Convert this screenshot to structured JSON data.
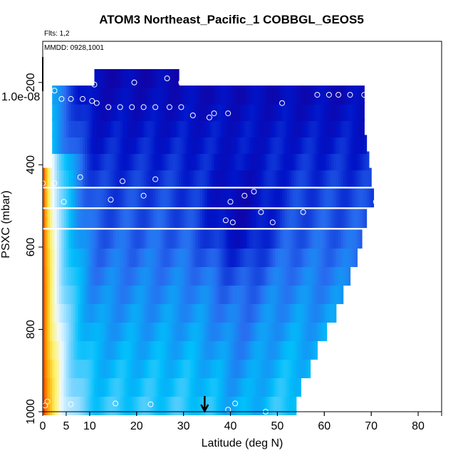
{
  "chart_data": {
    "type": "heatmap",
    "title": "ATOM3 Northeast_Pacific_1 COBBGL_GEOS5",
    "flights_label": "Flts: 1,2",
    "date_label": "MMDD: 0928,1001",
    "xlabel": "Latitude (deg N)",
    "ylabel": "PSXC (mbar)",
    "xlim": [
      0,
      85
    ],
    "ylim": [
      1000,
      100
    ],
    "x_ticks": [
      0,
      5,
      10,
      20,
      30,
      40,
      50,
      60,
      70,
      80
    ],
    "y_ticks": [
      200,
      400,
      600,
      800,
      1000
    ],
    "special_tick_label": "1.0e-08",
    "arrow_latitude": 34.5,
    "rows": [
      {
        "p": 985,
        "xmax": 54
      },
      {
        "p": 940,
        "xmax": 55
      },
      {
        "p": 895,
        "xmax": 57
      },
      {
        "p": 850,
        "xmax": 58.5
      },
      {
        "p": 805,
        "xmax": 60.5
      },
      {
        "p": 760,
        "xmax": 62.5
      },
      {
        "p": 715,
        "xmax": 64
      },
      {
        "p": 670,
        "xmax": 65.5
      },
      {
        "p": 625,
        "xmax": 67
      },
      {
        "p": 580,
        "xmax": 68
      },
      {
        "p": 530,
        "xmax": 69
      },
      {
        "p": 480,
        "xmax": 70.5
      },
      {
        "p": 430,
        "xmax": 70
      },
      {
        "p": 390,
        "xmax": 69.5
      },
      {
        "p": 350,
        "xmax": 69
      },
      {
        "p": 310,
        "xmax": 68.5
      },
      {
        "p": 270,
        "xmax": 68.5
      },
      {
        "p": 230,
        "xmax": 68.5
      },
      {
        "p": 190,
        "xmin": 11,
        "xmax": 29
      }
    ],
    "flight_points": [
      {
        "x": 0.5,
        "y": 985
      },
      {
        "x": 1,
        "y": 975
      },
      {
        "x": 6,
        "y": 982
      },
      {
        "x": 15.5,
        "y": 980
      },
      {
        "x": 23,
        "y": 982
      },
      {
        "x": 39.5,
        "y": 995
      },
      {
        "x": 41,
        "y": 980
      },
      {
        "x": 47.5,
        "y": 1000
      },
      {
        "x": 0,
        "y": 445
      },
      {
        "x": 2.5,
        "y": 445
      },
      {
        "x": 4.5,
        "y": 490
      },
      {
        "x": 8,
        "y": 430
      },
      {
        "x": 14.5,
        "y": 485
      },
      {
        "x": 17,
        "y": 440
      },
      {
        "x": 21.5,
        "y": 475
      },
      {
        "x": 24,
        "y": 435
      },
      {
        "x": 39,
        "y": 535
      },
      {
        "x": 40,
        "y": 490
      },
      {
        "x": 40.5,
        "y": 540
      },
      {
        "x": 43,
        "y": 475
      },
      {
        "x": 45,
        "y": 465
      },
      {
        "x": 46.5,
        "y": 515
      },
      {
        "x": 49,
        "y": 540
      },
      {
        "x": 55.5,
        "y": 515
      },
      {
        "x": 71,
        "y": 490
      },
      {
        "x": 2.5,
        "y": 220
      },
      {
        "x": 4,
        "y": 240
      },
      {
        "x": 6,
        "y": 240
      },
      {
        "x": 8.5,
        "y": 240
      },
      {
        "x": 10.5,
        "y": 245
      },
      {
        "x": 11.5,
        "y": 250
      },
      {
        "x": 14,
        "y": 260
      },
      {
        "x": 16.5,
        "y": 260
      },
      {
        "x": 19,
        "y": 260
      },
      {
        "x": 21.5,
        "y": 260
      },
      {
        "x": 24,
        "y": 260
      },
      {
        "x": 27,
        "y": 260
      },
      {
        "x": 29.5,
        "y": 260
      },
      {
        "x": 32,
        "y": 280
      },
      {
        "x": 35.5,
        "y": 285
      },
      {
        "x": 36.5,
        "y": 275
      },
      {
        "x": 39.5,
        "y": 275
      },
      {
        "x": 51,
        "y": 250
      },
      {
        "x": 58.5,
        "y": 230
      },
      {
        "x": 61,
        "y": 230
      },
      {
        "x": 63,
        "y": 230
      },
      {
        "x": 65.5,
        "y": 230
      },
      {
        "x": 68.5,
        "y": 230
      },
      {
        "x": 11,
        "y": 205
      },
      {
        "x": 19.5,
        "y": 200
      },
      {
        "x": 26.5,
        "y": 190
      },
      {
        "x": 29.5,
        "y": 200
      }
    ],
    "colors": {
      "axis": "#000000",
      "point": "#ffffff",
      "arrow": "#000000"
    }
  }
}
